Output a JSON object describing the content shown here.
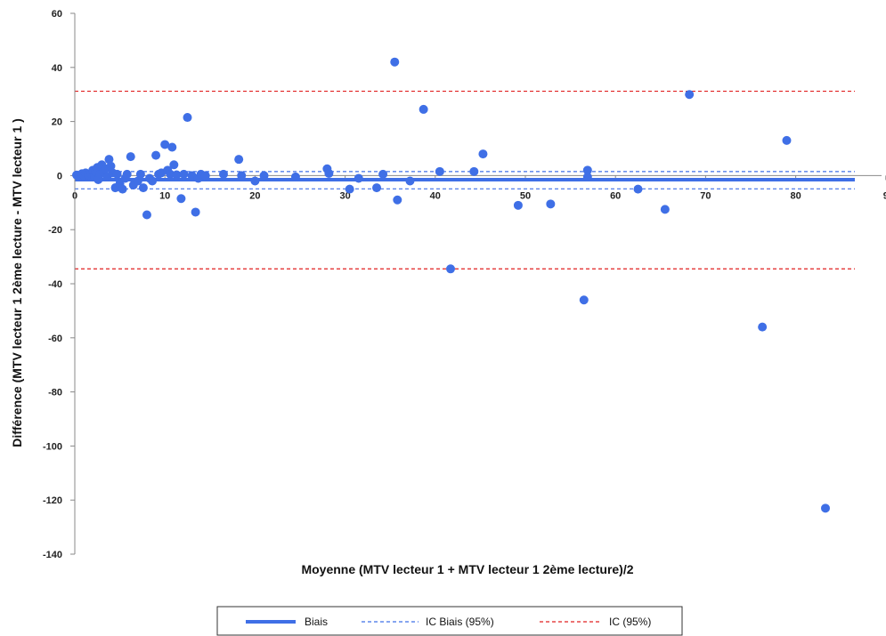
{
  "chart_data": {
    "type": "scatter",
    "xlabel": "Moyenne (MTV  lecteur 1 + MTV  lecteur 1 2ème lecture)/2",
    "ylabel": "Différence (MTV  lecteur 1 2ème lecture - MTV  lecteur 1 )",
    "xlim": [
      0,
      90
    ],
    "ylim": [
      -140,
      60
    ],
    "x_ticks": [
      "0",
      "10",
      "20",
      "30",
      "40",
      "50",
      "60",
      "70",
      "80",
      "9"
    ],
    "y_ticks": [
      "60",
      "40",
      "20",
      "0",
      "-20",
      "-40",
      "-60",
      "-80",
      "-100",
      "-120",
      "-140"
    ],
    "grid": false,
    "legend_position": "bottom",
    "lines": [
      {
        "name": "Biais",
        "y": -1.5,
        "color": "#3f6fe6",
        "style": "solid"
      },
      {
        "name": "IC Biais (95%)",
        "y": [
          1.5,
          -4.9
        ],
        "color": "#3f6fe6",
        "style": "dashed"
      },
      {
        "name": "IC (95%)",
        "y": [
          31.2,
          -34.5
        ],
        "color": "#e02020",
        "style": "dashed"
      }
    ],
    "series": [
      {
        "color": "#3f6fe6",
        "points": [
          [
            0.2,
            0.2
          ],
          [
            0.5,
            -0.5
          ],
          [
            0.8,
            0.7
          ],
          [
            1.0,
            0.0
          ],
          [
            1.2,
            1.0
          ],
          [
            1.5,
            0.3
          ],
          [
            1.8,
            0.8
          ],
          [
            2.0,
            2.0
          ],
          [
            2.2,
            -0.3
          ],
          [
            2.3,
            1.5
          ],
          [
            2.5,
            3.0
          ],
          [
            2.6,
            -1.5
          ],
          [
            2.8,
            0.5
          ],
          [
            3.0,
            4.0
          ],
          [
            3.2,
            1.5
          ],
          [
            3.4,
            2.5
          ],
          [
            3.6,
            -0.5
          ],
          [
            3.8,
            6.0
          ],
          [
            4.0,
            3.5
          ],
          [
            4.2,
            1.0
          ],
          [
            4.5,
            -4.5
          ],
          [
            4.7,
            0.5
          ],
          [
            5.0,
            -3.0
          ],
          [
            5.3,
            -5.0
          ],
          [
            5.6,
            -1.0
          ],
          [
            5.8,
            0.5
          ],
          [
            6.2,
            7.0
          ],
          [
            6.5,
            -3.5
          ],
          [
            7.0,
            -2.0
          ],
          [
            7.3,
            0.5
          ],
          [
            7.6,
            -4.5
          ],
          [
            8.0,
            -14.5
          ],
          [
            8.3,
            -1.0
          ],
          [
            8.6,
            -2.0
          ],
          [
            9.0,
            7.5
          ],
          [
            9.3,
            0.5
          ],
          [
            9.6,
            1.0
          ],
          [
            10.0,
            11.5
          ],
          [
            10.3,
            2.0
          ],
          [
            10.6,
            0.5
          ],
          [
            10.8,
            10.5
          ],
          [
            11.0,
            4.0
          ],
          [
            11.3,
            0.3
          ],
          [
            11.8,
            -8.5
          ],
          [
            12.1,
            0.5
          ],
          [
            12.5,
            21.5
          ],
          [
            13.0,
            0.0
          ],
          [
            13.4,
            -13.5
          ],
          [
            13.7,
            -1.0
          ],
          [
            14.0,
            0.5
          ],
          [
            14.5,
            0.0
          ],
          [
            16.5,
            0.5
          ],
          [
            18.2,
            6.0
          ],
          [
            18.5,
            0.0
          ],
          [
            20.0,
            -2.0
          ],
          [
            21.0,
            0.0
          ],
          [
            24.5,
            -0.5
          ],
          [
            28.0,
            2.5
          ],
          [
            28.2,
            0.8
          ],
          [
            30.5,
            -5.0
          ],
          [
            31.5,
            -1.0
          ],
          [
            33.5,
            -4.5
          ],
          [
            34.2,
            0.5
          ],
          [
            35.5,
            42.0
          ],
          [
            35.8,
            -9.0
          ],
          [
            37.2,
            -2.0
          ],
          [
            38.7,
            24.5
          ],
          [
            40.5,
            1.5
          ],
          [
            41.7,
            -34.5
          ],
          [
            44.3,
            1.5
          ],
          [
            45.3,
            8.0
          ],
          [
            49.2,
            -11.0
          ],
          [
            52.8,
            -10.5
          ],
          [
            56.5,
            -46.0
          ],
          [
            56.9,
            2.0
          ],
          [
            56.9,
            -0.5
          ],
          [
            62.5,
            -5.0
          ],
          [
            65.5,
            -12.5
          ],
          [
            68.2,
            30.0
          ],
          [
            76.3,
            -56.0
          ],
          [
            79.0,
            13.0
          ],
          [
            83.3,
            -123.0
          ]
        ]
      }
    ]
  },
  "legend": {
    "items": [
      {
        "label": "Biais",
        "color": "#3f6fe6",
        "style": "solid"
      },
      {
        "label": "IC Biais (95%)",
        "color": "#3f6fe6",
        "style": "dashed"
      },
      {
        "label": "IC (95%)",
        "color": "#e02020",
        "style": "dashed"
      }
    ]
  }
}
